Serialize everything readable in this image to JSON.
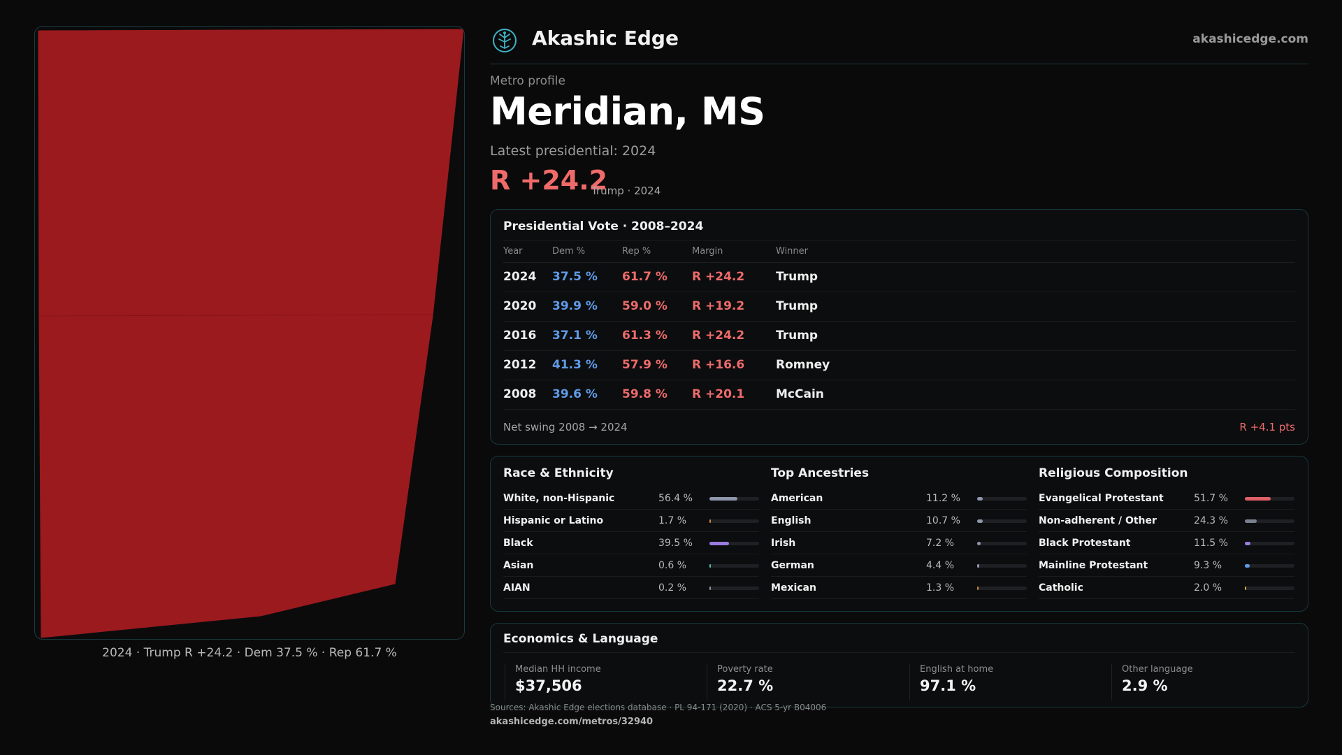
{
  "colors": {
    "rep": "#ee6b6b",
    "dem": "#5f9be8",
    "map_fill": "#9b1a1e",
    "accent_border": "#17393e"
  },
  "map": {
    "caption": "2024 · Trump R +24.2 · Dem 37.5 % · Rep 61.7 %"
  },
  "brand": {
    "logo_icon": "tree-of-life-icon",
    "name": "Akashic Edge",
    "site": "akashicedge.com"
  },
  "profile": {
    "label": "Metro profile",
    "metro_name": "Meridian, MS",
    "latest_label": "Latest presidential: 2024",
    "latest_margin": "R +24.2",
    "latest_sub": "Trump · 2024"
  },
  "vote_table": {
    "title": "Presidential Vote · 2008–2024",
    "headers": {
      "year": "Year",
      "dem": "Dem %",
      "rep": "Rep %",
      "margin": "Margin",
      "winner": "Winner"
    },
    "rows": [
      {
        "year": "2024",
        "dem": "37.5 %",
        "rep": "61.7 %",
        "margin": "R +24.2",
        "winner": "Trump"
      },
      {
        "year": "2020",
        "dem": "39.9 %",
        "rep": "59.0 %",
        "margin": "R +19.2",
        "winner": "Trump"
      },
      {
        "year": "2016",
        "dem": "37.1 %",
        "rep": "61.3 %",
        "margin": "R +24.2",
        "winner": "Trump"
      },
      {
        "year": "2012",
        "dem": "41.3 %",
        "rep": "57.9 %",
        "margin": "R +16.6",
        "winner": "Romney"
      },
      {
        "year": "2008",
        "dem": "39.6 %",
        "rep": "59.8 %",
        "margin": "R +20.1",
        "winner": "McCain"
      }
    ],
    "swing_label": "Net swing 2008 → 2024",
    "swing_value": "R +4.1 pts"
  },
  "demographics": {
    "race": {
      "title": "Race & Ethnicity",
      "items": [
        {
          "label": "White, non-Hispanic",
          "value": "56.4 %",
          "pct": 56.4,
          "color": "#8e97ad"
        },
        {
          "label": "Hispanic or Latino",
          "value": "1.7 %",
          "pct": 1.7,
          "color": "#d08a3c"
        },
        {
          "label": "Black",
          "value": "39.5 %",
          "pct": 39.5,
          "color": "#9a7ce0"
        },
        {
          "label": "Asian",
          "value": "0.6 %",
          "pct": 0.6,
          "color": "#5fbfa8"
        },
        {
          "label": "AIAN",
          "value": "0.2 %",
          "pct": 0.2,
          "color": "#8e97ad"
        }
      ]
    },
    "ancestry": {
      "title": "Top Ancestries",
      "items": [
        {
          "label": "American",
          "value": "11.2 %",
          "pct": 11.2,
          "color": "#8e97ad"
        },
        {
          "label": "English",
          "value": "10.7 %",
          "pct": 10.7,
          "color": "#8e97ad"
        },
        {
          "label": "Irish",
          "value": "7.2 %",
          "pct": 7.2,
          "color": "#8e97ad"
        },
        {
          "label": "German",
          "value": "4.4 %",
          "pct": 4.4,
          "color": "#8e97ad"
        },
        {
          "label": "Mexican",
          "value": "1.3 %",
          "pct": 1.3,
          "color": "#d08a3c"
        }
      ]
    },
    "religion": {
      "title": "Religious Composition",
      "items": [
        {
          "label": "Evangelical Protestant",
          "value": "51.7 %",
          "pct": 51.7,
          "color": "#e06067"
        },
        {
          "label": "Non-adherent / Other",
          "value": "24.3 %",
          "pct": 24.3,
          "color": "#7b8090"
        },
        {
          "label": "Black Protestant",
          "value": "11.5 %",
          "pct": 11.5,
          "color": "#9a7ce0"
        },
        {
          "label": "Mainline Protestant",
          "value": "9.3 %",
          "pct": 9.3,
          "color": "#5f9be8"
        },
        {
          "label": "Catholic",
          "value": "2.0 %",
          "pct": 2.0,
          "color": "#d9a63c"
        }
      ]
    }
  },
  "economics": {
    "title": "Economics & Language",
    "cells": [
      {
        "label": "Median HH income",
        "value": "$37,506"
      },
      {
        "label": "Poverty rate",
        "value": "22.7 %"
      },
      {
        "label": "English at home",
        "value": "97.1 %"
      },
      {
        "label": "Other language",
        "value": "2.9 %"
      }
    ]
  },
  "footer": {
    "sources": "Sources: Akashic Edge elections database · PL 94-171 (2020) · ACS 5-yr B04006",
    "url": "akashicedge.com/metros/32940"
  }
}
